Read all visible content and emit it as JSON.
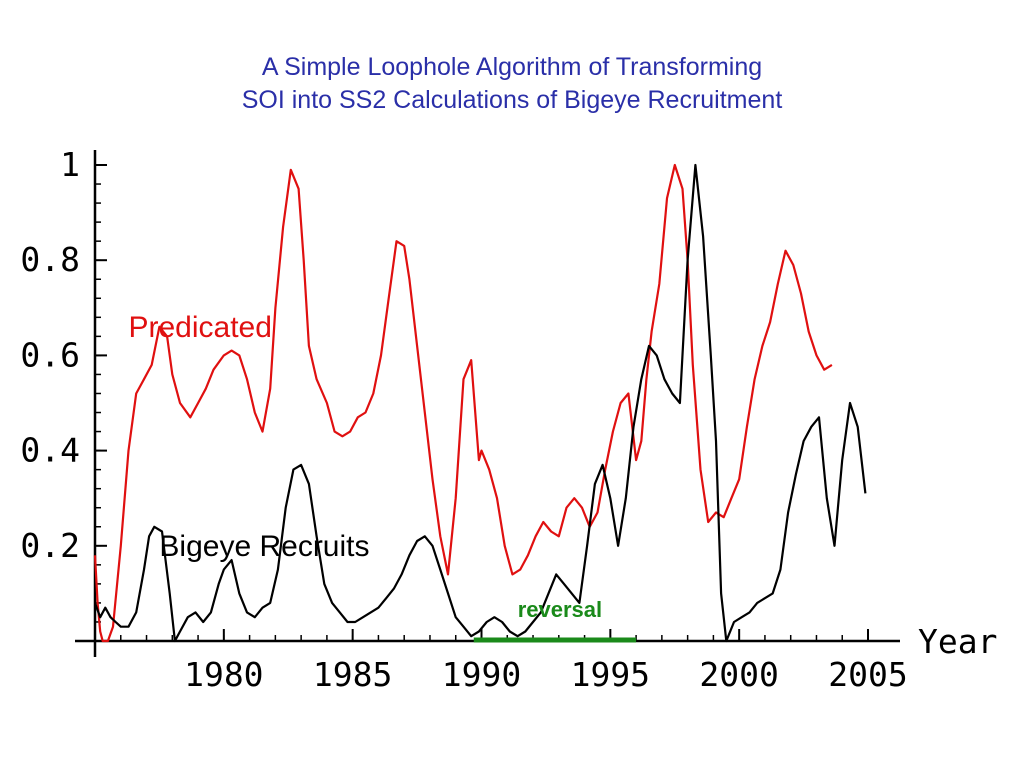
{
  "chart_data": {
    "type": "line",
    "title_lines": [
      "A Simple Loophole Algorithm of Transforming",
      "SOI into SS2 Calculations of Bigeye  Recruitment"
    ],
    "xlabel": "Year",
    "ylabel": "",
    "xlim": [
      1975.0,
      2005.0
    ],
    "ylim": [
      0,
      1
    ],
    "x_ticks": [
      1980,
      1985,
      1990,
      1995,
      2000,
      2005
    ],
    "x_tick_labels": [
      "1980",
      "1985",
      "1990",
      "1995",
      "2000",
      "2005"
    ],
    "y_ticks": [
      0.2,
      0.4,
      0.6,
      0.8,
      1
    ],
    "y_tick_labels": [
      "0.2",
      "0.4",
      "0.6",
      "0.8",
      "1"
    ],
    "grid": false,
    "series": [
      {
        "name": "Predicated",
        "color": "#e01010",
        "x": [
          1975.0,
          1975.1,
          1975.2,
          1975.3,
          1975.5,
          1975.7,
          1976.0,
          1976.3,
          1976.6,
          1976.9,
          1977.2,
          1977.5,
          1977.8,
          1978.0,
          1978.3,
          1978.7,
          1979.0,
          1979.3,
          1979.6,
          1980.0,
          1980.3,
          1980.6,
          1980.9,
          1981.2,
          1981.5,
          1981.8,
          1982.0,
          1982.3,
          1982.6,
          1982.9,
          1983.1,
          1983.3,
          1983.6,
          1984.0,
          1984.3,
          1984.6,
          1984.9,
          1985.2,
          1985.5,
          1985.8,
          1986.1,
          1986.4,
          1986.7,
          1987.0,
          1987.2,
          1987.5,
          1987.8,
          1988.1,
          1988.4,
          1988.7,
          1989.0,
          1989.3,
          1989.6,
          1989.9,
          1990.0,
          1990.3,
          1990.6,
          1990.9,
          1991.2,
          1991.5,
          1991.8,
          1992.1,
          1992.4,
          1992.7,
          1993.0,
          1993.3,
          1993.6,
          1993.9,
          1994.2,
          1994.5,
          1994.8,
          1995.1,
          1995.4,
          1995.7,
          1996.0,
          1996.2,
          1996.4,
          1996.6,
          1996.9,
          1997.2,
          1997.5,
          1997.8,
          1998.0,
          1998.2,
          1998.5,
          1998.8,
          1999.1,
          1999.4,
          1999.7,
          2000.0,
          2000.3,
          2000.6,
          2000.9,
          2001.2,
          2001.5,
          2001.8,
          2002.1,
          2002.4,
          2002.7,
          2003.0,
          2003.3,
          2003.6,
          2003.9,
          2004.1,
          2004.3
        ],
        "y": [
          0.18,
          0.08,
          0.02,
          0.0,
          0.0,
          0.03,
          0.2,
          0.4,
          0.52,
          0.55,
          0.58,
          0.66,
          0.64,
          0.56,
          0.5,
          0.47,
          0.5,
          0.53,
          0.57,
          0.6,
          0.61,
          0.6,
          0.55,
          0.48,
          0.44,
          0.53,
          0.7,
          0.87,
          0.99,
          0.95,
          0.8,
          0.62,
          0.55,
          0.5,
          0.44,
          0.43,
          0.44,
          0.47,
          0.48,
          0.52,
          0.6,
          0.72,
          0.84,
          0.83,
          0.76,
          0.62,
          0.48,
          0.34,
          0.22,
          0.14,
          0.3,
          0.55,
          0.59,
          0.38,
          0.4,
          0.36,
          0.3,
          0.2,
          0.14,
          0.15,
          0.18,
          0.22,
          0.25,
          0.23,
          0.22,
          0.28,
          0.3,
          0.28,
          0.24,
          0.27,
          0.36,
          0.44,
          0.5,
          0.52,
          0.38,
          0.42,
          0.55,
          0.65,
          0.75,
          0.93,
          1.0,
          0.95,
          0.8,
          0.58,
          0.36,
          0.25,
          0.27,
          0.26,
          0.3,
          0.34,
          0.45,
          0.55,
          0.62,
          0.67,
          0.75,
          0.82,
          0.79,
          0.73,
          0.65,
          0.6,
          0.57,
          0.58,
          null,
          null,
          null
        ]
      },
      {
        "name": "Bigeye Recruits",
        "color": "#000000",
        "x": [
          1975.0,
          1975.2,
          1975.4,
          1975.6,
          1975.8,
          1976.0,
          1976.3,
          1976.6,
          1976.9,
          1977.1,
          1977.3,
          1977.6,
          1977.9,
          1978.1,
          1978.3,
          1978.6,
          1978.9,
          1979.2,
          1979.5,
          1979.8,
          1980.0,
          1980.3,
          1980.6,
          1980.9,
          1981.2,
          1981.5,
          1981.8,
          1982.1,
          1982.4,
          1982.7,
          1983.0,
          1983.3,
          1983.6,
          1983.9,
          1984.2,
          1984.5,
          1984.8,
          1985.1,
          1985.4,
          1985.7,
          1986.0,
          1986.3,
          1986.6,
          1986.9,
          1987.2,
          1987.5,
          1987.8,
          1988.1,
          1988.4,
          1988.7,
          1989.0,
          1989.3,
          1989.6,
          1989.9,
          1990.2,
          1990.5,
          1990.8,
          1991.1,
          1991.4,
          1991.7,
          1992.0,
          1992.3,
          1992.6,
          1992.9,
          1993.2,
          1993.5,
          1993.8,
          1994.1,
          1994.4,
          1994.7,
          1995.0,
          1995.3,
          1995.6,
          1995.9,
          1996.2,
          1996.5,
          1996.8,
          1997.1,
          1997.4,
          1997.7,
          1998.0,
          1998.3,
          1998.6,
          1998.9,
          1999.1,
          1999.3,
          1999.5,
          1999.8,
          2000.1,
          2000.4,
          2000.7,
          2001.0,
          2001.3,
          2001.6,
          2001.9,
          2002.2,
          2002.5,
          2002.8,
          2003.1,
          2003.4,
          2003.7,
          2004.0,
          2004.3,
          2004.6,
          2004.9
        ],
        "y": [
          0.08,
          0.05,
          0.07,
          0.05,
          0.04,
          0.03,
          0.03,
          0.06,
          0.15,
          0.22,
          0.24,
          0.23,
          0.1,
          0.0,
          0.02,
          0.05,
          0.06,
          0.04,
          0.06,
          0.12,
          0.15,
          0.17,
          0.1,
          0.06,
          0.05,
          0.07,
          0.08,
          0.15,
          0.28,
          0.36,
          0.37,
          0.33,
          0.22,
          0.12,
          0.08,
          0.06,
          0.04,
          0.04,
          0.05,
          0.06,
          0.07,
          0.09,
          0.11,
          0.14,
          0.18,
          0.21,
          0.22,
          0.2,
          0.15,
          0.1,
          0.05,
          0.03,
          0.01,
          0.02,
          0.04,
          0.05,
          0.04,
          0.02,
          0.01,
          0.02,
          0.04,
          0.06,
          0.1,
          0.14,
          0.12,
          0.1,
          0.08,
          0.2,
          0.33,
          0.37,
          0.3,
          0.2,
          0.3,
          0.45,
          0.55,
          0.62,
          0.6,
          0.55,
          0.52,
          0.5,
          0.8,
          1.0,
          0.85,
          0.6,
          0.42,
          0.1,
          0.0,
          0.04,
          0.05,
          0.06,
          0.08,
          0.09,
          0.1,
          0.15,
          0.27,
          0.35,
          0.42,
          0.45,
          0.47,
          0.3,
          0.2,
          0.38,
          0.5,
          0.45,
          0.31
        ]
      }
    ],
    "series_labels": [
      {
        "text": "Predicated",
        "color": "#e01010",
        "x": 1976.3,
        "y": 0.66
      },
      {
        "text": "Bigeye Recruits",
        "color": "#000000",
        "x": 1977.5,
        "y": 0.2
      }
    ],
    "annotations": [
      {
        "text": "reversal",
        "color": "#1a8a1a",
        "x_start": 1989.7,
        "x_end": 1996.0
      }
    ]
  }
}
